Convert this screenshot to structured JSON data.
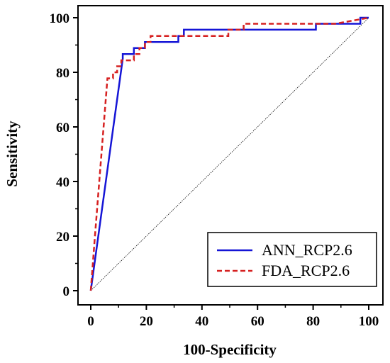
{
  "chart_data": {
    "type": "line",
    "title": "",
    "xlabel": "100-Specificity",
    "ylabel": "Sensitivity",
    "xlim": [
      0,
      100
    ],
    "ylim": [
      0,
      100
    ],
    "xticks": [
      0,
      20,
      40,
      60,
      80,
      100
    ],
    "yticks": [
      0,
      20,
      40,
      60,
      80,
      100
    ],
    "grid": false,
    "legend_position": "bottom-right",
    "reference_line": {
      "x": [
        0,
        100
      ],
      "y": [
        0,
        100
      ],
      "color": "#000000",
      "style": "dotted"
    },
    "series": [
      {
        "name": "ANN_RCP2.6",
        "color": "#1515d6",
        "style": "solid",
        "x": [
          0,
          11.5,
          11.5,
          15.5,
          15.5,
          19.5,
          19.5,
          21.5,
          21.5,
          31.5,
          31.5,
          33.5,
          33.5,
          81,
          81,
          82.5,
          82.5,
          97,
          97,
          100
        ],
        "y": [
          0,
          85,
          86.7,
          86.7,
          88.9,
          88.9,
          91.1,
          91.1,
          91.1,
          91.1,
          93.3,
          93.3,
          95.6,
          95.6,
          97.8,
          97.8,
          97.8,
          97.8,
          100,
          100
        ]
      },
      {
        "name": "FDA_RCP2.6",
        "color": "#d62020",
        "style": "dashed",
        "x": [
          0,
          1.5,
          6,
          6,
          8,
          8,
          9.5,
          9.5,
          11,
          11,
          15.5,
          15.5,
          17.5,
          17.5,
          19.5,
          19.5,
          21.5,
          21.5,
          49.5,
          49.5,
          55,
          55,
          88,
          88,
          100
        ],
        "y": [
          0,
          20,
          77.8,
          77.8,
          77.8,
          80,
          80,
          82.2,
          82.2,
          84.4,
          84.4,
          86.7,
          86.7,
          88.9,
          88.9,
          91.1,
          91.1,
          93.3,
          93.3,
          95.6,
          95.6,
          97.8,
          97.8,
          97.8,
          100
        ]
      }
    ]
  }
}
